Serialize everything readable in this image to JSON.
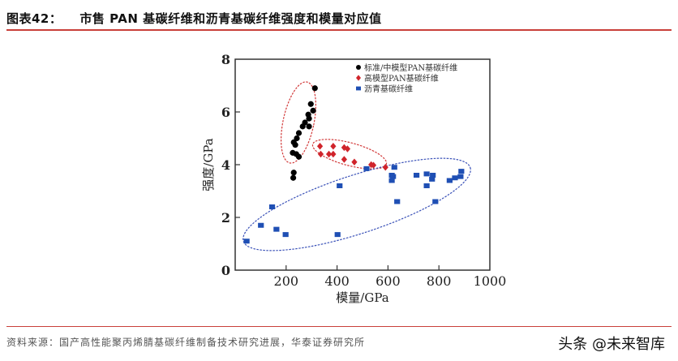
{
  "header": {
    "figure_label": "图表42：",
    "title": "市售 PAN 基碳纤维和沥青基碳纤维强度和模量对应值"
  },
  "footer": {
    "source": "资料来源：国产高性能聚丙烯腈基碳纤维制备技术研究进展，华泰证券研究所",
    "watermark": "头条 @未来智库"
  },
  "colors": {
    "accent_line": "#c9403a",
    "series_black": "#000000",
    "series_red": "#d0242b",
    "series_blue": "#1f4fb4",
    "ellipse_red": "#d23a3a",
    "ellipse_blue": "#3b52b8"
  },
  "chart_data": {
    "type": "scatter",
    "title": "市售 PAN 基碳纤维和沥青基碳纤维强度和模量对应值",
    "xlabel": "模量/GPa",
    "ylabel": "强度/GPa",
    "xlim": [
      0,
      1000
    ],
    "ylim": [
      0,
      8
    ],
    "x_ticks": [
      "200",
      "400",
      "600",
      "800",
      "1000"
    ],
    "y_ticks": [
      "0",
      "2",
      "4",
      "6",
      "8"
    ],
    "grid": false,
    "legend_position": "upper right (inside)",
    "series": [
      {
        "name": "标准/中模型PAN基碳纤维",
        "marker": "circle",
        "color": "#000000",
        "points": [
          [
            313,
            6.9
          ],
          [
            297,
            6.3
          ],
          [
            306,
            6.05
          ],
          [
            287,
            5.9
          ],
          [
            290,
            5.75
          ],
          [
            274,
            5.6
          ],
          [
            290,
            5.45
          ],
          [
            265,
            5.45
          ],
          [
            250,
            5.2
          ],
          [
            242,
            5.0
          ],
          [
            230,
            4.85
          ],
          [
            236,
            4.75
          ],
          [
            226,
            4.45
          ],
          [
            240,
            4.4
          ],
          [
            250,
            4.3
          ],
          [
            230,
            3.7
          ],
          [
            228,
            3.5
          ]
        ]
      },
      {
        "name": "高模型PAN基碳纤维",
        "marker": "diamond",
        "color": "#d0242b",
        "points": [
          [
            333,
            4.7
          ],
          [
            385,
            4.7
          ],
          [
            428,
            4.65
          ],
          [
            441,
            4.6
          ],
          [
            336,
            4.4
          ],
          [
            368,
            4.4
          ],
          [
            385,
            4.4
          ],
          [
            428,
            4.2
          ],
          [
            468,
            4.1
          ],
          [
            534,
            4.0
          ],
          [
            543,
            3.98
          ],
          [
            590,
            3.9
          ]
        ]
      },
      {
        "name": "沥青基碳纤维",
        "marker": "square",
        "color": "#1f4fb4",
        "points": [
          [
            45,
            1.1
          ],
          [
            101,
            1.7
          ],
          [
            145,
            2.4
          ],
          [
            162,
            1.55
          ],
          [
            198,
            1.35
          ],
          [
            402,
            1.35
          ],
          [
            410,
            3.2
          ],
          [
            516,
            3.85
          ],
          [
            625,
            3.9
          ],
          [
            615,
            3.6
          ],
          [
            620,
            3.55
          ],
          [
            615,
            3.4
          ],
          [
            636,
            2.6
          ],
          [
            712,
            3.6
          ],
          [
            752,
            3.65
          ],
          [
            752,
            3.2
          ],
          [
            776,
            3.6
          ],
          [
            773,
            3.45
          ],
          [
            786,
            2.6
          ],
          [
            842,
            3.4
          ],
          [
            863,
            3.5
          ],
          [
            885,
            3.55
          ],
          [
            888,
            3.75
          ]
        ]
      }
    ],
    "annotations": [
      {
        "type": "ellipse",
        "style": "dashed",
        "color": "red",
        "encloses": "标准/中模型PAN基碳纤维"
      },
      {
        "type": "ellipse",
        "style": "dashed",
        "color": "red",
        "encloses": "高模型PAN基碳纤维"
      },
      {
        "type": "ellipse",
        "style": "dashed",
        "color": "blue",
        "encloses": "沥青基碳纤维"
      }
    ]
  }
}
